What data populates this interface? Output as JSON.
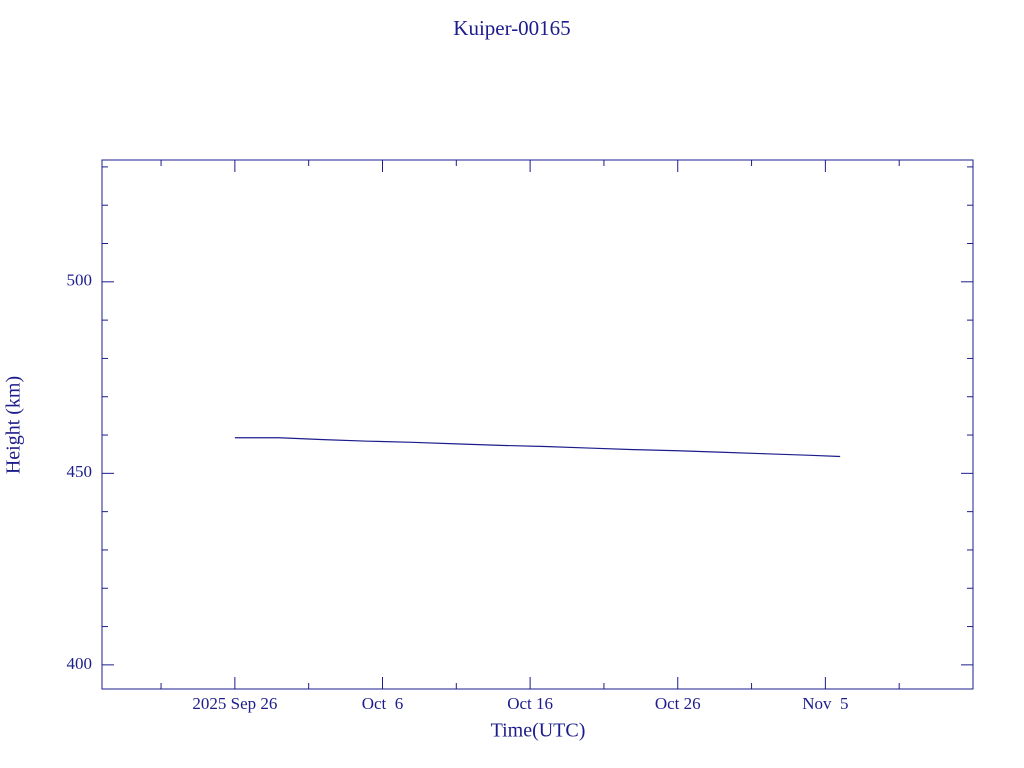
{
  "chart_data": {
    "type": "line",
    "title": "Kuiper-00165",
    "xlabel": "Time(UTC)",
    "ylabel": "Height (km)",
    "x": [
      "2025-09-26",
      "2025-09-29",
      "2025-10-02",
      "2025-10-05",
      "2025-10-08",
      "2025-10-11",
      "2025-10-14",
      "2025-10-17",
      "2025-10-20",
      "2025-10-23",
      "2025-10-26",
      "2025-10-29",
      "2025-11-01",
      "2025-11-04",
      "2025-11-06"
    ],
    "series": [
      {
        "name": "Kuiper-00165",
        "color": "#1c1c8c",
        "values": [
          459.3,
          459.3,
          458.8,
          458.4,
          458.1,
          457.7,
          457.3,
          457.0,
          456.6,
          456.2,
          455.9,
          455.5,
          455.1,
          454.7,
          454.4
        ]
      }
    ],
    "xlim": [
      "2025-09-17",
      "2025-11-15"
    ],
    "xticks": [
      {
        "value": "2025-09-26",
        "label": "2025 Sep 26"
      },
      {
        "value": "2025-10-06",
        "label": "Oct  6"
      },
      {
        "value": "2025-10-16",
        "label": "Oct 16"
      },
      {
        "value": "2025-10-26",
        "label": "Oct 26"
      },
      {
        "value": "2025-11-05",
        "label": "Nov  5"
      }
    ],
    "xminorticks": [
      "2025-09-21",
      "2025-10-01",
      "2025-10-11",
      "2025-10-21",
      "2025-10-31",
      "2025-11-10"
    ],
    "ylim": [
      393.7,
      531.8
    ],
    "yticks": [
      400,
      450,
      500
    ],
    "yminorticks": [
      410,
      420,
      430,
      440,
      460,
      470,
      480,
      490,
      510,
      520,
      530
    ]
  }
}
